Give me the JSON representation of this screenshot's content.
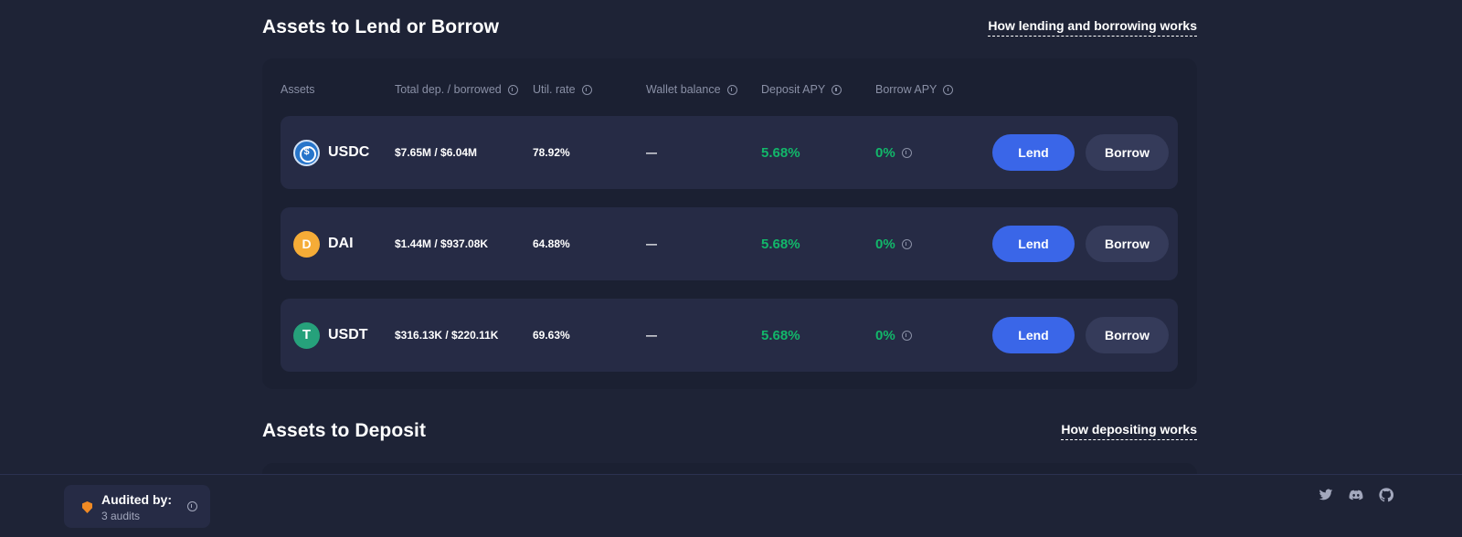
{
  "lend_section": {
    "title": "Assets to Lend or Borrow",
    "link": "How lending and borrowing works"
  },
  "columns": {
    "assets": "Assets",
    "total": "Total dep. / borrowed",
    "util": "Util. rate",
    "wallet": "Wallet balance",
    "deposit_apy": "Deposit APY",
    "borrow_apy": "Borrow APY"
  },
  "rows": [
    {
      "symbol": "USDC",
      "icon": "usdc-icon",
      "icon_color": "#2775ca",
      "total": "$7.65M / $6.04M",
      "util": "78.92%",
      "wallet": "—",
      "deposit_apy": "5.68%",
      "borrow_apy": "0%",
      "lend_label": "Lend",
      "borrow_label": "Borrow"
    },
    {
      "symbol": "DAI",
      "icon": "dai-icon",
      "icon_color": "#f5ac37",
      "total": "$1.44M / $937.08K",
      "util": "64.88%",
      "wallet": "—",
      "deposit_apy": "5.68%",
      "borrow_apy": "0%",
      "lend_label": "Lend",
      "borrow_label": "Borrow"
    },
    {
      "symbol": "USDT",
      "icon": "usdt-icon",
      "icon_color": "#26a17b",
      "total": "$316.13K / $220.11K",
      "util": "69.63%",
      "wallet": "—",
      "deposit_apy": "5.68%",
      "borrow_apy": "0%",
      "lend_label": "Lend",
      "borrow_label": "Borrow"
    }
  ],
  "deposit_section": {
    "title": "Assets to Deposit",
    "link": "How depositing works"
  },
  "footer": {
    "audit_title": "Audited by:",
    "audit_count": "3 audits",
    "social_icons": [
      "twitter-icon",
      "discord-icon",
      "github-icon"
    ]
  },
  "colors": {
    "background": "#1e2336",
    "row_background": "#262b45",
    "lend_button": "#3a66e8",
    "borrow_button": "#353b5a",
    "apy_green": "#12b76a"
  }
}
